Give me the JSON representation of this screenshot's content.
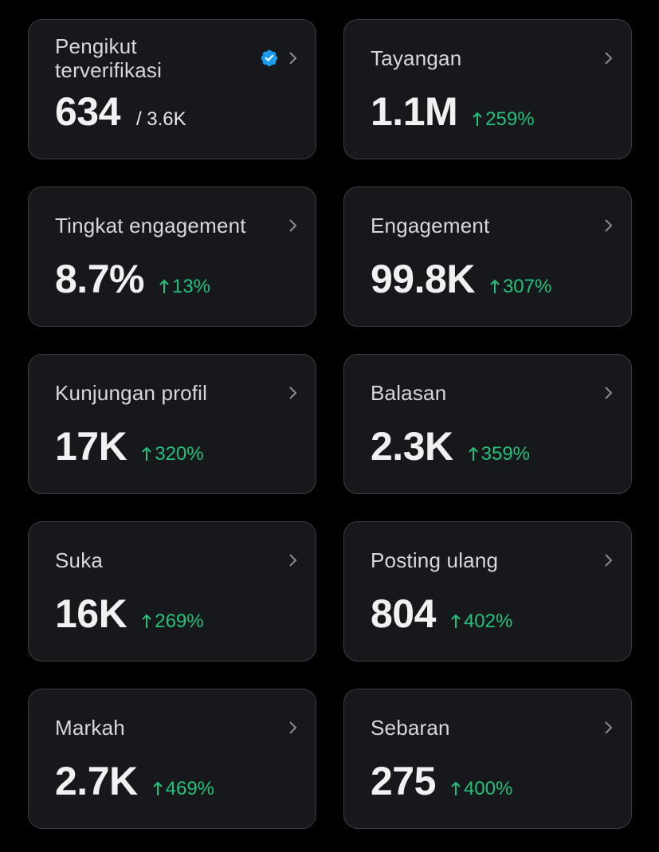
{
  "colors": {
    "background": "#000000",
    "card": "#16181c",
    "border": "#3a3d42",
    "positive": "#22c27a",
    "verified": "#1d9bf0"
  },
  "cards": [
    {
      "label": "Pengikut terverifikasi",
      "value": "634",
      "total": "/ 3.6K",
      "icon": "verified-badge-icon"
    },
    {
      "label": "Tayangan",
      "value": "1.1M",
      "change": "259%"
    },
    {
      "label": "Tingkat engagement",
      "value": "8.7%",
      "change": "13%"
    },
    {
      "label": "Engagement",
      "value": "99.8K",
      "change": "307%"
    },
    {
      "label": "Kunjungan profil",
      "value": "17K",
      "change": "320%"
    },
    {
      "label": "Balasan",
      "value": "2.3K",
      "change": "359%"
    },
    {
      "label": "Suka",
      "value": "16K",
      "change": "269%"
    },
    {
      "label": "Posting ulang",
      "value": "804",
      "change": "402%"
    },
    {
      "label": "Markah",
      "value": "2.7K",
      "change": "469%"
    },
    {
      "label": "Sebaran",
      "value": "275",
      "change": "400%"
    }
  ]
}
